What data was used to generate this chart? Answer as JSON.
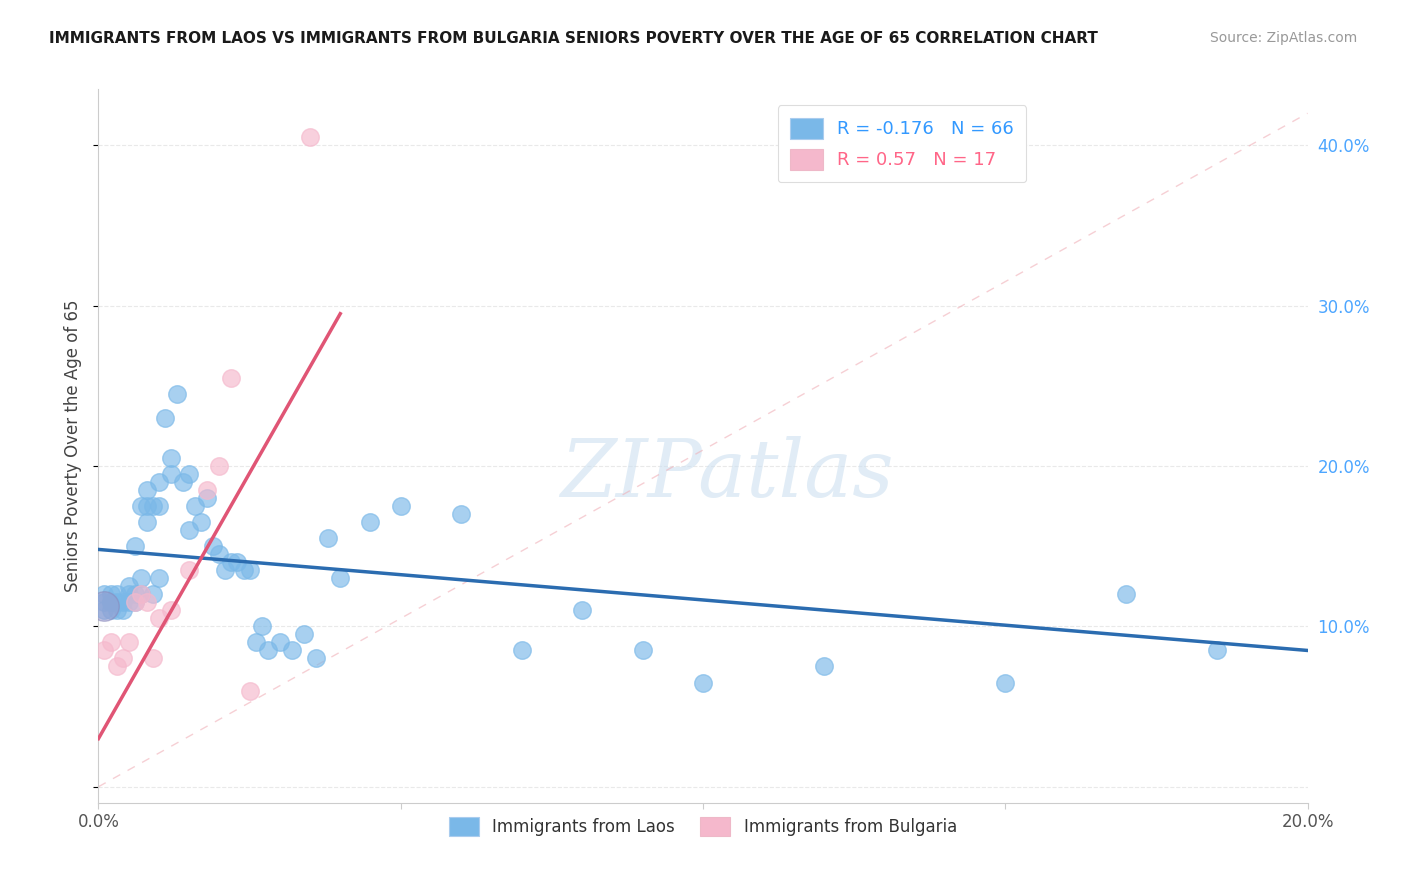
{
  "title": "IMMIGRANTS FROM LAOS VS IMMIGRANTS FROM BULGARIA SENIORS POVERTY OVER THE AGE OF 65 CORRELATION CHART",
  "source": "Source: ZipAtlas.com",
  "ylabel": "Seniors Poverty Over the Age of 65",
  "legend_laos": "Immigrants from Laos",
  "legend_bulgaria": "Immigrants from Bulgaria",
  "R_laos": -0.176,
  "N_laos": 66,
  "R_bulgaria": 0.57,
  "N_bulgaria": 17,
  "color_laos": "#7ab8e8",
  "color_bulgaria": "#f5b8cc",
  "color_laos_line": "#2b6cb0",
  "color_bulgaria_line": "#e05575",
  "color_laos_text": "#3399ff",
  "color_bulgaria_text": "#ff6688",
  "x_min": 0.0,
  "x_max": 0.2,
  "y_min": -0.01,
  "y_max": 0.435,
  "laos_x": [
    0.001,
    0.001,
    0.001,
    0.002,
    0.002,
    0.002,
    0.002,
    0.003,
    0.003,
    0.003,
    0.004,
    0.004,
    0.005,
    0.005,
    0.005,
    0.006,
    0.006,
    0.006,
    0.007,
    0.007,
    0.007,
    0.008,
    0.008,
    0.008,
    0.009,
    0.009,
    0.01,
    0.01,
    0.01,
    0.011,
    0.012,
    0.012,
    0.013,
    0.014,
    0.015,
    0.015,
    0.016,
    0.017,
    0.018,
    0.019,
    0.02,
    0.021,
    0.022,
    0.023,
    0.024,
    0.025,
    0.026,
    0.027,
    0.028,
    0.03,
    0.032,
    0.034,
    0.036,
    0.038,
    0.04,
    0.045,
    0.05,
    0.06,
    0.07,
    0.08,
    0.09,
    0.1,
    0.12,
    0.15,
    0.17,
    0.185
  ],
  "laos_y": [
    0.11,
    0.115,
    0.12,
    0.11,
    0.115,
    0.115,
    0.12,
    0.11,
    0.115,
    0.12,
    0.11,
    0.115,
    0.115,
    0.12,
    0.125,
    0.115,
    0.12,
    0.15,
    0.12,
    0.13,
    0.175,
    0.165,
    0.175,
    0.185,
    0.12,
    0.175,
    0.13,
    0.175,
    0.19,
    0.23,
    0.195,
    0.205,
    0.245,
    0.19,
    0.16,
    0.195,
    0.175,
    0.165,
    0.18,
    0.15,
    0.145,
    0.135,
    0.14,
    0.14,
    0.135,
    0.135,
    0.09,
    0.1,
    0.085,
    0.09,
    0.085,
    0.095,
    0.08,
    0.155,
    0.13,
    0.165,
    0.175,
    0.17,
    0.085,
    0.11,
    0.085,
    0.065,
    0.075,
    0.065,
    0.12,
    0.085
  ],
  "bulgaria_x": [
    0.001,
    0.002,
    0.003,
    0.004,
    0.005,
    0.006,
    0.007,
    0.008,
    0.009,
    0.01,
    0.012,
    0.015,
    0.018,
    0.02,
    0.022,
    0.025,
    0.035
  ],
  "bulgaria_y": [
    0.085,
    0.09,
    0.075,
    0.08,
    0.09,
    0.115,
    0.12,
    0.115,
    0.08,
    0.105,
    0.11,
    0.135,
    0.185,
    0.2,
    0.255,
    0.06,
    0.405
  ],
  "laos_line_x0": 0.0,
  "laos_line_x1": 0.2,
  "laos_line_y0": 0.148,
  "laos_line_y1": 0.085,
  "bulg_line_x0": 0.0,
  "bulg_line_x1": 0.04,
  "bulg_line_y0": 0.03,
  "bulg_line_y1": 0.295,
  "ref_line_x0": 0.0,
  "ref_line_x1": 0.2,
  "ref_line_y0": 0.0,
  "ref_line_y1": 0.42,
  "watermark": "ZIPatlas",
  "background_color": "#ffffff",
  "grid_color": "#e0e0e0"
}
